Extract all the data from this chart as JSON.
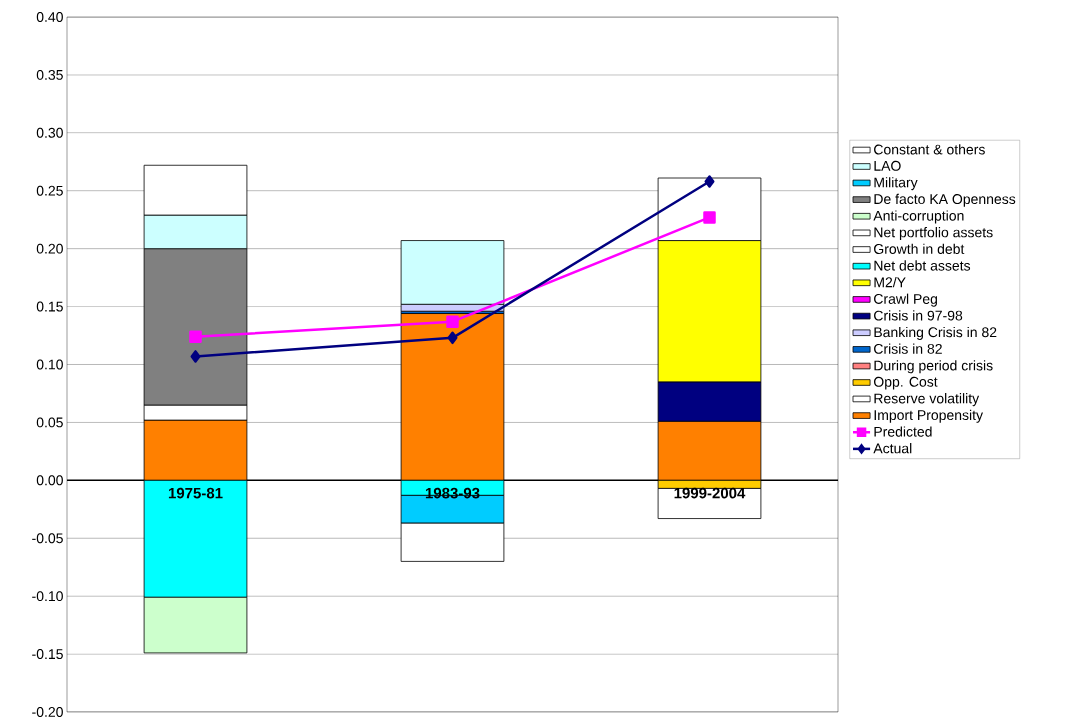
{
  "chart_data": {
    "type": "bar",
    "stacked": true,
    "categories": [
      "1975-81",
      "1983-93",
      "1999-2004"
    ],
    "ylim": [
      -0.2,
      0.4
    ],
    "yticks": [
      {
        "value": -0.2,
        "label": "-0.20"
      },
      {
        "value": -0.15,
        "label": "-0.15"
      },
      {
        "value": -0.1,
        "label": "-0.10"
      },
      {
        "value": -0.05,
        "label": "-0.05"
      },
      {
        "value": 0,
        "label": "0.00"
      },
      {
        "value": 0.05,
        "label": "0.05"
      },
      {
        "value": 0.1,
        "label": "0.10"
      },
      {
        "value": 0.15,
        "label": "0.15"
      },
      {
        "value": 0.2,
        "label": "0.20"
      },
      {
        "value": 0.25,
        "label": "0.25"
      },
      {
        "value": 0.3,
        "label": "0.30"
      },
      {
        "value": 0.35,
        "label": "0.35"
      },
      {
        "value": 0.4,
        "label": "0.40"
      }
    ],
    "grid": "y",
    "legend": "right",
    "series": [
      {
        "name": "Import Propensity",
        "color": "#ff8000",
        "values": [
          0.052,
          0.144,
          0.051
        ]
      },
      {
        "name": "Reserve volatility",
        "color": "#ffffff",
        "values": [
          0.013,
          null,
          null
        ]
      },
      {
        "name": "Opp. Cost",
        "color": "#ffcc00",
        "values": [
          null,
          null,
          -0.007
        ]
      },
      {
        "name": "During period crisis",
        "color": "#ff8080",
        "values": [
          null,
          null,
          null
        ]
      },
      {
        "name": "Crisis in 82",
        "color": "#0066cc",
        "values": [
          null,
          0.002,
          null
        ]
      },
      {
        "name": "Banking Crisis in 82",
        "color": "#ccccff",
        "values": [
          null,
          0.006,
          null
        ]
      },
      {
        "name": "Crisis in 97-98",
        "color": "#000080",
        "values": [
          null,
          null,
          0.034
        ]
      },
      {
        "name": "Crawl Peg",
        "color": "#ff00ff",
        "values": [
          null,
          null,
          null
        ]
      },
      {
        "name": "M2/Y",
        "color": "#ffff00",
        "values": [
          null,
          null,
          0.122
        ]
      },
      {
        "name": "Net debt assets",
        "color": "#00ffff",
        "values": [
          -0.101,
          -0.013,
          null
        ]
      },
      {
        "name": "Growth in debt",
        "color": "#ffffff",
        "values": [
          null,
          null,
          null
        ]
      },
      {
        "name": "Net portfolio assets",
        "color": "#ffffff",
        "values": [
          null,
          null,
          -0.026
        ]
      },
      {
        "name": "Anti-corruption",
        "color": "#ccffcc",
        "values": [
          -0.048,
          null,
          null
        ]
      },
      {
        "name": "De facto KA Openness",
        "color": "#808080",
        "values": [
          0.135,
          null,
          null
        ]
      },
      {
        "name": "Military",
        "color": "#00ccff",
        "values": [
          null,
          -0.024,
          null
        ]
      },
      {
        "name": "LAO",
        "color": "#ccffff",
        "values": [
          0.029,
          0.055,
          null
        ]
      },
      {
        "name": "Constant & others",
        "color": "#ffffff",
        "values": [
          0.043,
          -0.033,
          0.054
        ]
      },
      {
        "name": "Predicted",
        "type": "line",
        "color": "#ff00ff",
        "marker": "square",
        "values": [
          0.124,
          0.137,
          0.227
        ]
      },
      {
        "name": "Actual",
        "type": "line",
        "color": "#000080",
        "marker": "diamond",
        "values": [
          0.107,
          0.123,
          0.258
        ]
      }
    ]
  }
}
